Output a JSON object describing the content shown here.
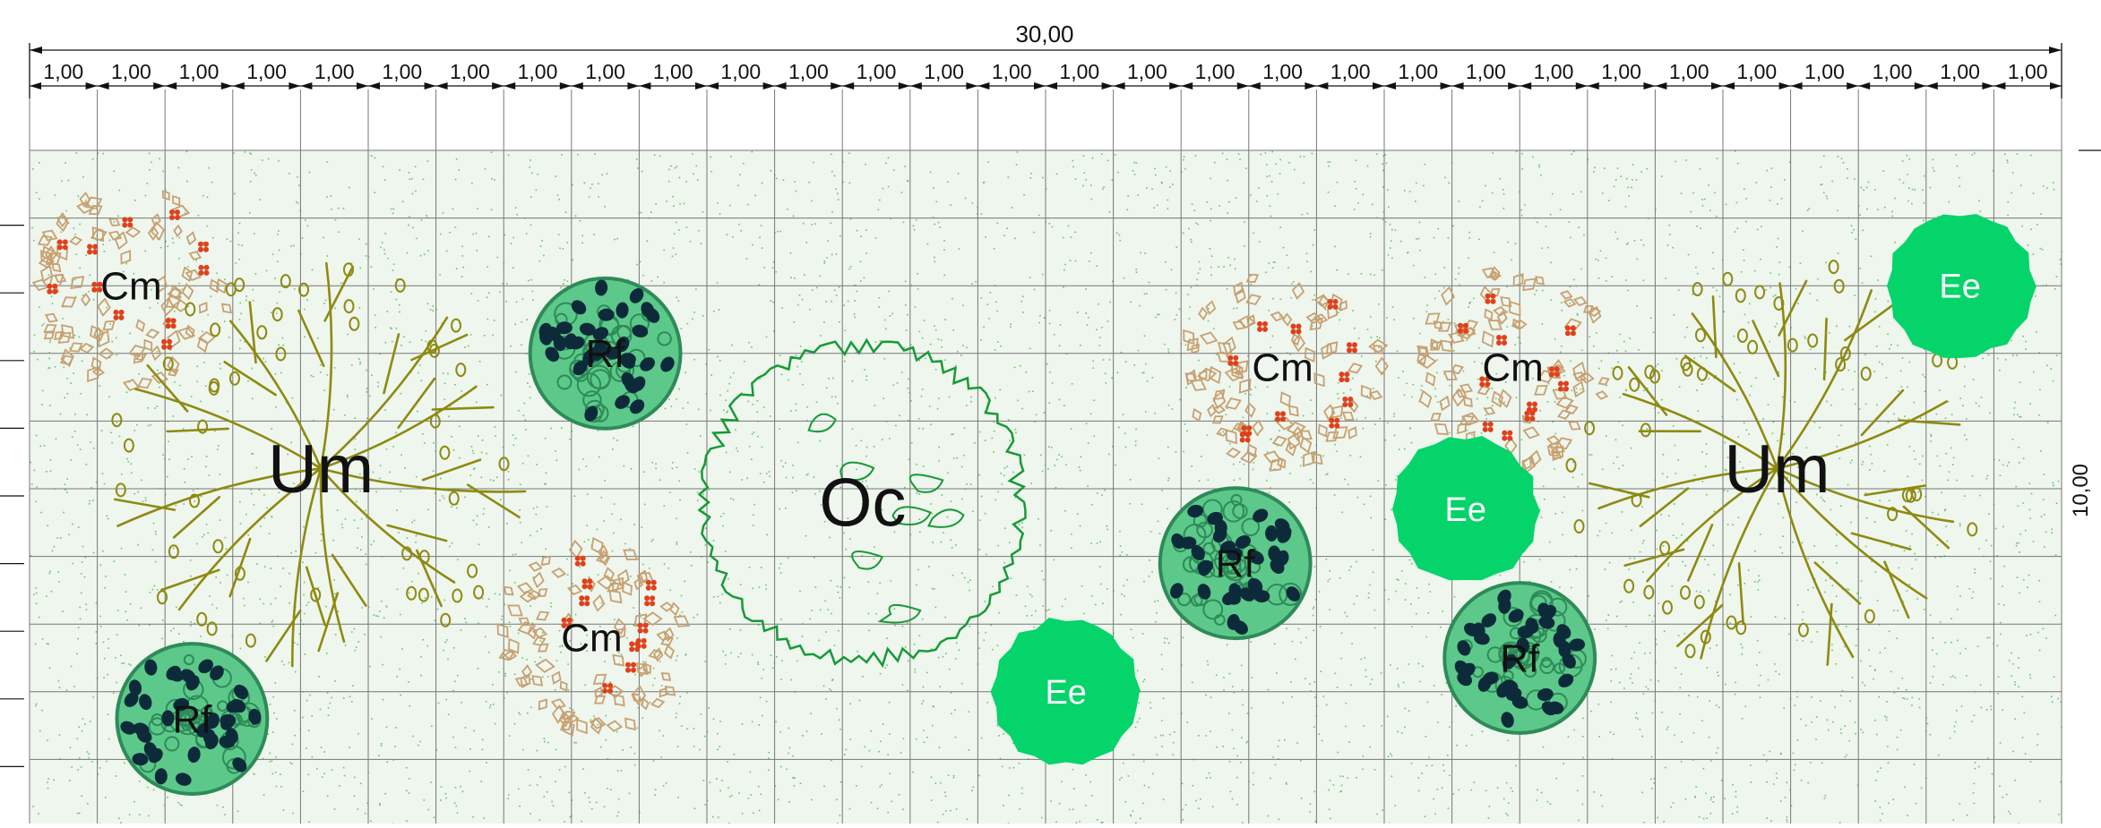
{
  "dimensions": {
    "total_width_label": "30,00",
    "segment_label": "1,00",
    "segment_count": 30,
    "height_label": "10,00"
  },
  "grid": {
    "columns": 30,
    "cell_size_m": 1.0,
    "major_line_color": "#777777"
  },
  "ground": {
    "color": "#eef6ee",
    "speckle_color": "#6cc06c"
  },
  "colors": {
    "cm_outline": "#c8a070",
    "cm_berry": "#e0401a",
    "um_branch": "#8e8a10",
    "oc_outline": "#179a36",
    "rf_outer": "#2e8b57",
    "rf_inner": "#5cc98a",
    "rf_dark": "#0d2a3a",
    "ee_fill": "#05d46a",
    "label_dark": "#111111",
    "label_light": "#ffffff"
  },
  "plants": [
    {
      "type": "Cm",
      "label": "Cm",
      "x": 1.5,
      "y": 2.0,
      "r": 1.5
    },
    {
      "type": "Um",
      "label": "Um",
      "x": 4.3,
      "y": 4.7,
      "r": 3.2
    },
    {
      "type": "Rf",
      "label": "Rf",
      "x": 8.5,
      "y": 3.0,
      "r": 1.5
    },
    {
      "type": "Cm",
      "label": "Cm",
      "x": 8.3,
      "y": 7.2,
      "r": 1.45
    },
    {
      "type": "Rf",
      "label": "Rf",
      "x": 2.4,
      "y": 8.4,
      "r": 1.5
    },
    {
      "type": "Oc",
      "label": "Oc",
      "x": 12.3,
      "y": 5.2,
      "r": 2.9
    },
    {
      "type": "Ee",
      "label": "Ee",
      "x": 15.3,
      "y": 8.0,
      "r": 1.5
    },
    {
      "type": "Cm",
      "label": "Cm",
      "x": 18.5,
      "y": 3.2,
      "r": 1.5
    },
    {
      "type": "Rf",
      "label": "Rf",
      "x": 17.8,
      "y": 6.1,
      "r": 1.5
    },
    {
      "type": "Cm",
      "label": "Cm",
      "x": 21.9,
      "y": 3.2,
      "r": 1.5
    },
    {
      "type": "Ee",
      "label": "Ee",
      "x": 21.2,
      "y": 5.3,
      "r": 1.5
    },
    {
      "type": "Rf",
      "label": "Rf",
      "x": 22.0,
      "y": 7.5,
      "r": 1.5
    },
    {
      "type": "Um",
      "label": "Um",
      "x": 25.8,
      "y": 4.7,
      "r": 3.2
    },
    {
      "type": "Ee",
      "label": "Ee",
      "x": 28.5,
      "y": 2.0,
      "r": 1.5
    }
  ]
}
